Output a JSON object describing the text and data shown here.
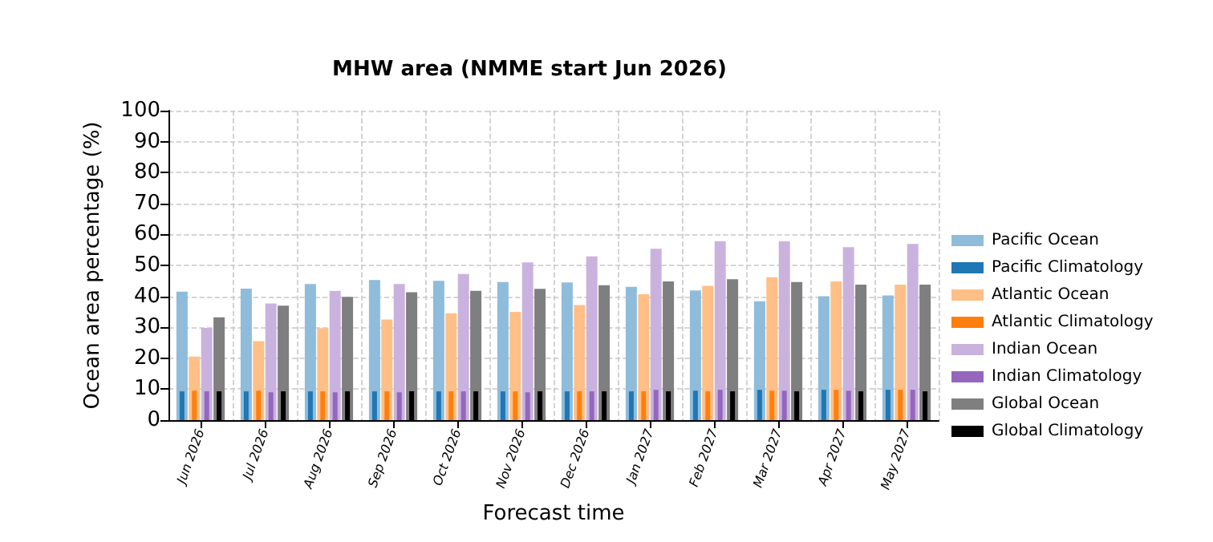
{
  "chart_data": {
    "type": "bar",
    "title": "MHW area (NMME start Jun 2026)",
    "xlabel": "Forecast time",
    "ylabel": "Ocean area percentage (%)",
    "categories": [
      "Jun 2026",
      "Jul 2026",
      "Aug 2026",
      "Sep 2026",
      "Oct 2026",
      "Nov 2026",
      "Dec 2026",
      "Jan 2027",
      "Feb 2027",
      "Mar 2027",
      "Apr 2027",
      "May 2027"
    ],
    "series": [
      {
        "name": "Pacific Ocean",
        "color": "#8fbcdb",
        "values": [
          41.5,
          42.5,
          44.0,
          45.3,
          45.0,
          44.6,
          44.5,
          43.1,
          41.9,
          38.4,
          40.0,
          40.3
        ]
      },
      {
        "name": "Pacific Climatology",
        "color": "#1f77b4",
        "values": [
          9.3,
          9.3,
          9.3,
          9.3,
          9.3,
          9.3,
          9.3,
          9.3,
          9.5,
          9.8,
          9.8,
          9.8
        ]
      },
      {
        "name": "Atlantic Ocean",
        "color": "#ffbf86",
        "values": [
          20.5,
          25.5,
          29.7,
          32.5,
          34.5,
          35.0,
          37.2,
          40.7,
          43.4,
          46.2,
          44.8,
          43.8
        ]
      },
      {
        "name": "Atlantic Climatology",
        "color": "#ff7f0e",
        "values": [
          9.5,
          9.5,
          9.3,
          9.3,
          9.3,
          9.3,
          9.3,
          9.3,
          9.3,
          9.5,
          9.8,
          9.8
        ]
      },
      {
        "name": "Indian Ocean",
        "color": "#c9b3de",
        "values": [
          29.8,
          37.7,
          41.8,
          44.0,
          47.2,
          51.0,
          52.9,
          55.4,
          57.8,
          57.8,
          55.9,
          56.9
        ]
      },
      {
        "name": "Indian Climatology",
        "color": "#9467bd",
        "values": [
          9.3,
          9.0,
          9.0,
          9.0,
          9.3,
          9.0,
          9.3,
          9.8,
          9.8,
          9.5,
          9.5,
          9.8
        ]
      },
      {
        "name": "Global Ocean",
        "color": "#7f7f7f",
        "values": [
          33.2,
          37.0,
          39.8,
          41.3,
          41.8,
          42.4,
          43.6,
          44.8,
          45.5,
          44.6,
          43.8,
          43.8
        ]
      },
      {
        "name": "Global Climatology",
        "color": "#000000",
        "values": [
          9.3,
          9.3,
          9.3,
          9.3,
          9.3,
          9.3,
          9.3,
          9.3,
          9.3,
          9.3,
          9.3,
          9.3
        ]
      }
    ],
    "ylim": [
      0,
      100
    ],
    "yticks": [
      0,
      10,
      20,
      30,
      40,
      50,
      60,
      70,
      80,
      90,
      100
    ],
    "grid": true,
    "legend": "right"
  }
}
